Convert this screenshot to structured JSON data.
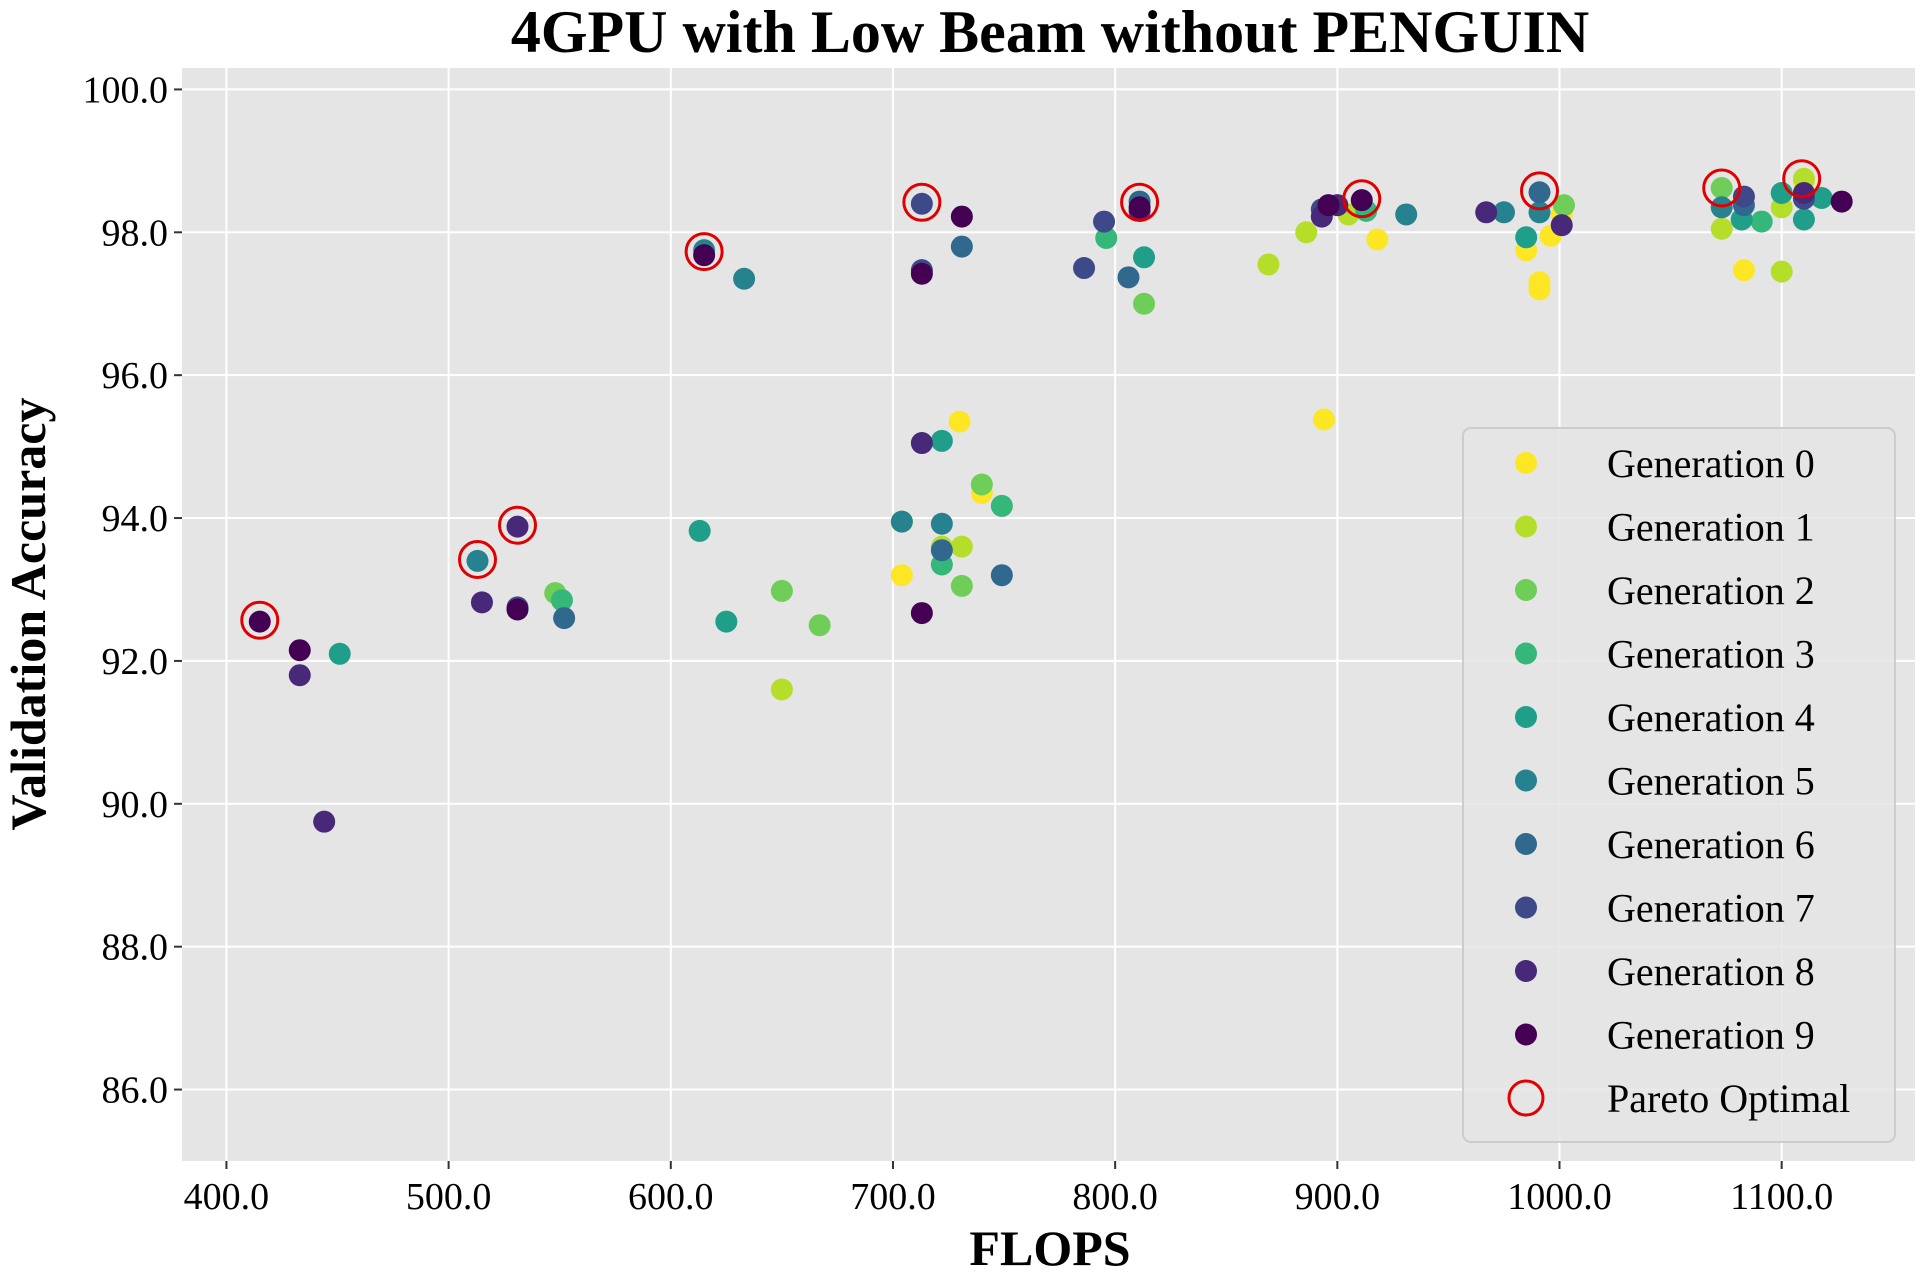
{
  "chart_data": {
    "type": "scatter",
    "title": "4GPU with Low Beam without PENGUIN",
    "xlabel": "FLOPS",
    "ylabel": "Validation Accuracy",
    "xlim": [
      380,
      1160
    ],
    "ylim": [
      85,
      100.3
    ],
    "xticks": [
      400,
      500,
      600,
      700,
      800,
      900,
      1000,
      1100
    ],
    "yticks": [
      86,
      88,
      90,
      92,
      94,
      96,
      98,
      100
    ],
    "xtick_labels": [
      "400.0",
      "500.0",
      "600.0",
      "700.0",
      "800.0",
      "900.0",
      "1000.0",
      "1100.0"
    ],
    "ytick_labels": [
      "86.0",
      "88.0",
      "90.0",
      "92.0",
      "94.0",
      "96.0",
      "98.0",
      "100.0"
    ],
    "grid": true,
    "legend_position": "bottom-right",
    "background": "#e5e5e5",
    "series": [
      {
        "name": "Generation 0",
        "color": "#fde725",
        "points": [
          [
            704,
            93.2
          ],
          [
            730,
            95.35
          ],
          [
            740,
            94.35
          ],
          [
            894,
            95.38
          ],
          [
            918,
            97.9
          ],
          [
            985,
            97.75
          ],
          [
            991,
            97.3
          ],
          [
            991,
            97.2
          ],
          [
            996,
            97.95
          ],
          [
            1001,
            98.25
          ],
          [
            1083,
            97.47
          ],
          [
            1110,
            98.7
          ]
        ]
      },
      {
        "name": "Generation 1",
        "color": "#b5de2b",
        "points": [
          [
            650,
            91.6
          ],
          [
            704,
            93.95
          ],
          [
            722,
            93.6
          ],
          [
            731,
            93.6
          ],
          [
            869,
            97.55
          ],
          [
            886,
            98.0
          ],
          [
            905,
            98.25
          ],
          [
            1073,
            98.05
          ],
          [
            1100,
            97.45
          ],
          [
            1100,
            98.35
          ],
          [
            1110,
            98.75
          ]
        ]
      },
      {
        "name": "Generation 2",
        "color": "#6ece58",
        "points": [
          [
            548,
            92.95
          ],
          [
            650,
            92.98
          ],
          [
            667,
            92.5
          ],
          [
            731,
            93.05
          ],
          [
            740,
            94.47
          ],
          [
            813,
            97.0
          ],
          [
            1002,
            98.38
          ],
          [
            1073,
            98.62
          ]
        ]
      },
      {
        "name": "Generation 3",
        "color": "#35b779",
        "points": [
          [
            551,
            92.85
          ],
          [
            722,
            93.35
          ],
          [
            749,
            94.17
          ],
          [
            796,
            97.92
          ],
          [
            913,
            98.3
          ],
          [
            1091,
            98.15
          ]
        ]
      },
      {
        "name": "Generation 4",
        "color": "#1f9e89",
        "points": [
          [
            451,
            92.1
          ],
          [
            613,
            93.82
          ],
          [
            625,
            92.55
          ],
          [
            722,
            95.08
          ],
          [
            813,
            97.65
          ],
          [
            985,
            97.93
          ],
          [
            1082,
            98.18
          ],
          [
            1100,
            98.55
          ],
          [
            1110,
            98.18
          ],
          [
            1118,
            98.48
          ]
        ]
      },
      {
        "name": "Generation 5",
        "color": "#26828e",
        "points": [
          [
            513,
            93.4
          ],
          [
            615,
            97.75
          ],
          [
            633,
            97.35
          ],
          [
            704,
            93.95
          ],
          [
            722,
            93.92
          ],
          [
            931,
            98.25
          ],
          [
            975,
            98.28
          ],
          [
            991,
            98.28
          ],
          [
            1073,
            98.35
          ]
        ]
      },
      {
        "name": "Generation 6",
        "color": "#31688e",
        "points": [
          [
            552,
            92.6
          ],
          [
            722,
            93.55
          ],
          [
            731,
            97.8
          ],
          [
            749,
            93.2
          ],
          [
            806,
            97.37
          ],
          [
            811,
            98.43
          ],
          [
            991,
            98.56
          ],
          [
            1083,
            98.38
          ]
        ]
      },
      {
        "name": "Generation 7",
        "color": "#3e4989",
        "points": [
          [
            531,
            92.75
          ],
          [
            713,
            97.47
          ],
          [
            713,
            98.4
          ],
          [
            786,
            97.5
          ],
          [
            795,
            98.15
          ],
          [
            893,
            98.32
          ],
          [
            1083,
            98.5
          ],
          [
            1110,
            98.47
          ]
        ]
      },
      {
        "name": "Generation 8",
        "color": "#482878",
        "points": [
          [
            433,
            91.8
          ],
          [
            444,
            89.75
          ],
          [
            515,
            92.82
          ],
          [
            531,
            93.88
          ],
          [
            713,
            95.05
          ],
          [
            811,
            98.3
          ],
          [
            893,
            98.22
          ],
          [
            900,
            98.38
          ],
          [
            967,
            98.28
          ],
          [
            1001,
            98.1
          ],
          [
            1110,
            98.55
          ]
        ]
      },
      {
        "name": "Generation 9",
        "color": "#440154",
        "points": [
          [
            415,
            92.55
          ],
          [
            433,
            92.15
          ],
          [
            531,
            92.72
          ],
          [
            615,
            97.68
          ],
          [
            713,
            92.67
          ],
          [
            713,
            97.42
          ],
          [
            731,
            98.22
          ],
          [
            811,
            98.35
          ],
          [
            896,
            98.38
          ],
          [
            911,
            98.45
          ],
          [
            1127,
            98.43
          ]
        ]
      }
    ],
    "pareto": {
      "name": "Pareto Optimal",
      "color": "#e00000",
      "points": [
        [
          415,
          92.57
        ],
        [
          513,
          93.42
        ],
        [
          531,
          93.9
        ],
        [
          615,
          97.73
        ],
        [
          713,
          98.42
        ],
        [
          811,
          98.42
        ],
        [
          911,
          98.47
        ],
        [
          991,
          98.58
        ],
        [
          1073,
          98.62
        ],
        [
          1109,
          98.75
        ]
      ]
    }
  }
}
